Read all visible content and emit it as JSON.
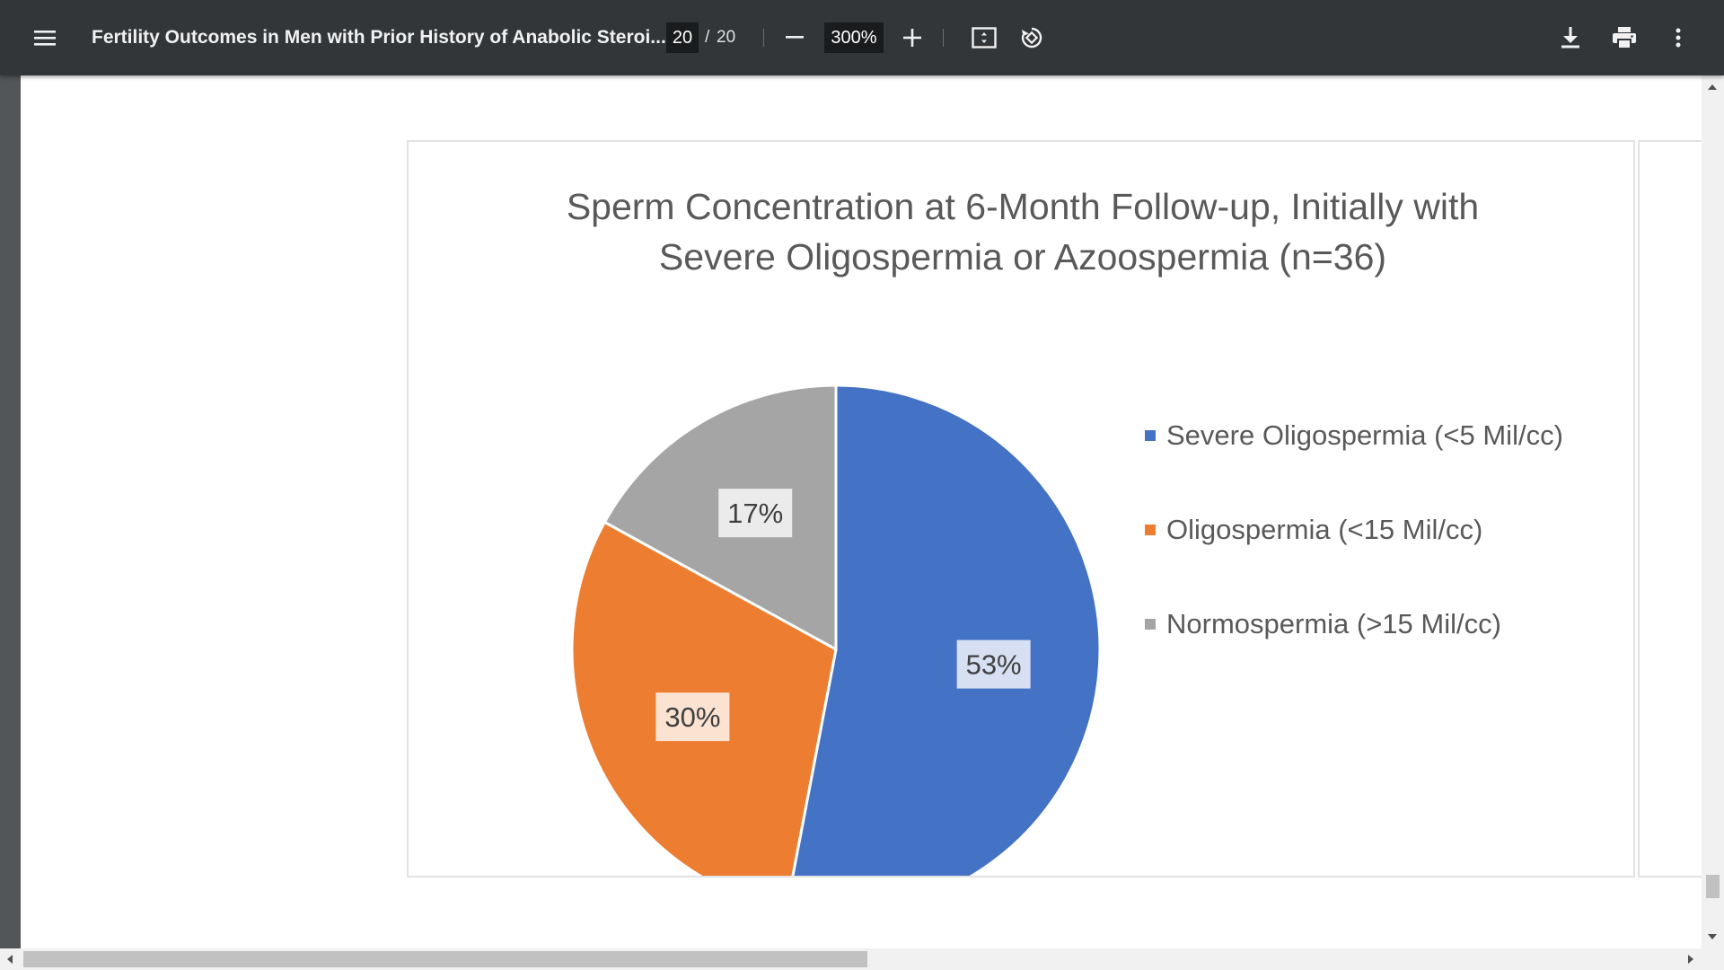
{
  "toolbar": {
    "title": "Fertility Outcomes in Men with Prior History of Anabolic Steroi...",
    "page_current": "20",
    "page_separator": "/",
    "page_total": "20",
    "zoom": "300%",
    "icons": [
      "menu-icon",
      "zoom-out-icon",
      "zoom-in-icon",
      "fit-page-icon",
      "rotate-icon",
      "download-icon",
      "print-icon",
      "more-options-icon"
    ]
  },
  "chart_data": {
    "type": "pie",
    "title_lines": [
      "Sperm Concentration at 6-Month Follow-up, Initially with",
      "Severe Oligospermia or Azoospermia (n=36)"
    ],
    "legend_position": "right",
    "slices": [
      {
        "name": "Severe Oligospermia (<5 Mil/cc)",
        "value": 53,
        "label": "53%",
        "color": "#4472C4"
      },
      {
        "name": "Oligospermia (<15 Mil/cc)",
        "value": 30,
        "label": "30%",
        "color": "#ED7D31"
      },
      {
        "name": "Normospermia (>15 Mil/cc)",
        "value": 17,
        "label": "17%",
        "color": "#A5A5A5"
      }
    ]
  }
}
